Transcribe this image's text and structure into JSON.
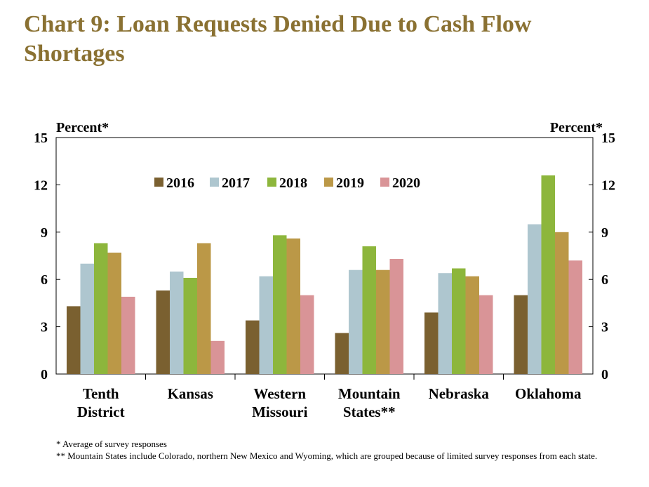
{
  "title": "Chart 9: Loan Requests Denied Due to Cash Flow Shortages",
  "footnotes": [
    "* Average of survey responses",
    "** Mountain States include Colorado, northern New Mexico and Wyoming, which are grouped because of limited survey responses from each state."
  ],
  "colors": {
    "title": "#8a7132",
    "2016": "#7a6030",
    "2017": "#aec6cf",
    "2018": "#8db63c",
    "2019": "#bb9847",
    "2020": "#d99497"
  },
  "chart_data": {
    "type": "bar",
    "ylabel_left": "Percent*",
    "ylabel_right": "Percent*",
    "ylim": [
      0,
      15
    ],
    "yticks": [
      0,
      3,
      6,
      9,
      12,
      15
    ],
    "legend_position": "top-left",
    "grid": false,
    "categories": [
      [
        "Tenth",
        "District"
      ],
      [
        "Kansas"
      ],
      [
        "Western",
        "Missouri"
      ],
      [
        "Mountain",
        "States**"
      ],
      [
        "Nebraska"
      ],
      [
        "Oklahoma"
      ]
    ],
    "series": [
      {
        "name": "2016",
        "color": "#7a6030",
        "values": [
          4.3,
          5.3,
          3.4,
          2.6,
          3.9,
          5.0
        ]
      },
      {
        "name": "2017",
        "color": "#aec6cf",
        "values": [
          7.0,
          6.5,
          6.2,
          6.6,
          6.4,
          9.5
        ]
      },
      {
        "name": "2018",
        "color": "#8db63c",
        "values": [
          8.3,
          6.1,
          8.8,
          8.1,
          6.7,
          12.6
        ]
      },
      {
        "name": "2019",
        "color": "#bb9847",
        "values": [
          7.7,
          8.3,
          8.6,
          6.6,
          6.2,
          9.0
        ]
      },
      {
        "name": "2020",
        "color": "#d99497",
        "values": [
          4.9,
          2.1,
          5.0,
          7.3,
          5.0,
          7.2
        ]
      }
    ]
  }
}
